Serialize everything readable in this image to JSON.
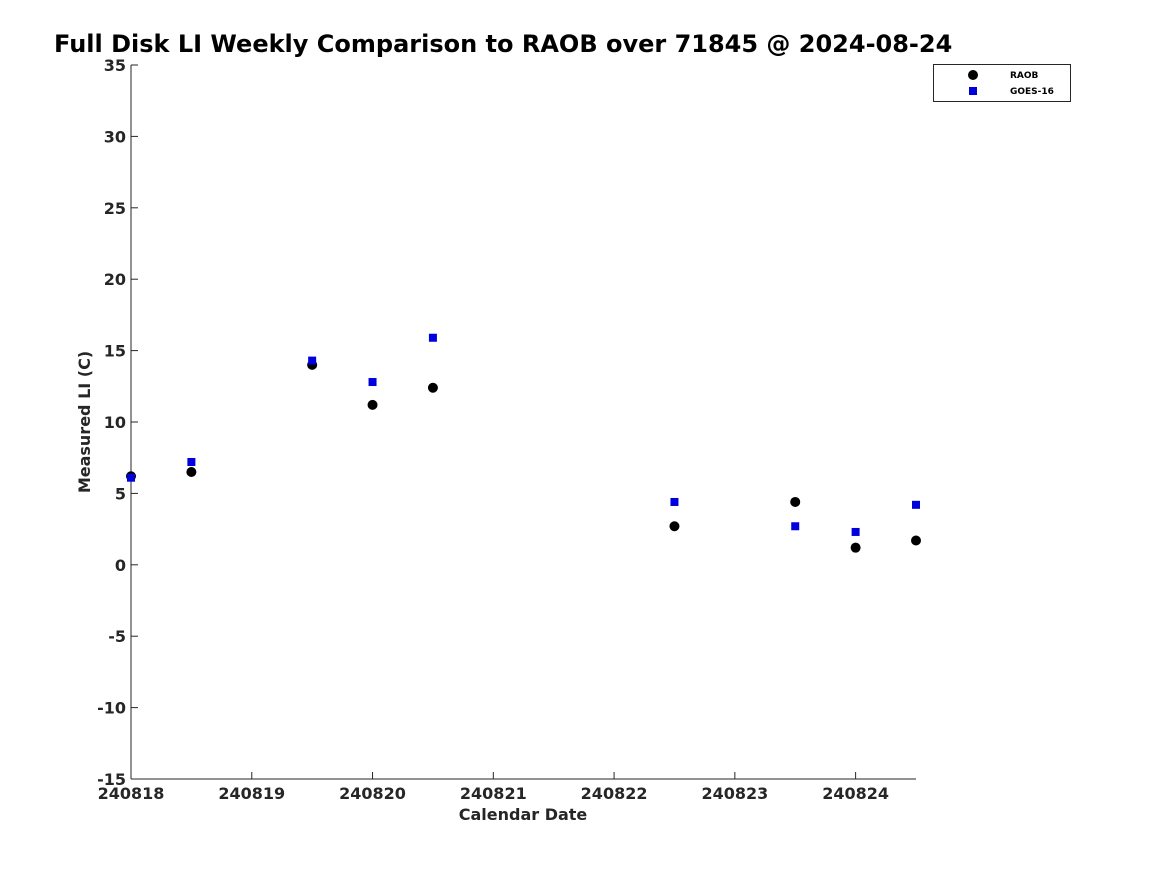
{
  "chart_data": {
    "type": "scatter",
    "title": "Full Disk LI Weekly Comparison to RAOB over 71845 @ 2024-08-24",
    "xlabel": "Calendar Date",
    "ylabel": "Measured LI (C)",
    "x_tick_labels": [
      "240818",
      "240819",
      "240820",
      "240821",
      "240822",
      "240823",
      "240824"
    ],
    "xlim": [
      "2024-08-18T00:00",
      "2024-08-24T12:00"
    ],
    "ylim": [
      -15,
      35
    ],
    "y_ticks": [
      -15,
      -10,
      -5,
      0,
      5,
      10,
      15,
      20,
      25,
      30,
      35
    ],
    "grid": false,
    "legend_position": "top-right",
    "series": [
      {
        "name": "RAOB",
        "marker": "circle",
        "color": "#000000",
        "points": [
          {
            "x": "2024-08-18T00:00",
            "y": 6.2
          },
          {
            "x": "2024-08-18T12:00",
            "y": 6.5
          },
          {
            "x": "2024-08-19T12:00",
            "y": 14.0
          },
          {
            "x": "2024-08-20T00:00",
            "y": 11.2
          },
          {
            "x": "2024-08-20T12:00",
            "y": 12.4
          },
          {
            "x": "2024-08-22T12:00",
            "y": 2.7
          },
          {
            "x": "2024-08-23T12:00",
            "y": 4.4
          },
          {
            "x": "2024-08-24T00:00",
            "y": 1.2
          },
          {
            "x": "2024-08-24T12:00",
            "y": 1.7
          }
        ]
      },
      {
        "name": "GOES-16",
        "marker": "square",
        "color": "#0000dd",
        "points": [
          {
            "x": "2024-08-18T00:00",
            "y": 6.1
          },
          {
            "x": "2024-08-18T12:00",
            "y": 7.2
          },
          {
            "x": "2024-08-19T12:00",
            "y": 14.3
          },
          {
            "x": "2024-08-20T00:00",
            "y": 12.8
          },
          {
            "x": "2024-08-20T12:00",
            "y": 15.9
          },
          {
            "x": "2024-08-22T12:00",
            "y": 4.4
          },
          {
            "x": "2024-08-23T12:00",
            "y": 2.7
          },
          {
            "x": "2024-08-24T00:00",
            "y": 2.3
          },
          {
            "x": "2024-08-24T12:00",
            "y": 4.2
          }
        ]
      }
    ]
  }
}
